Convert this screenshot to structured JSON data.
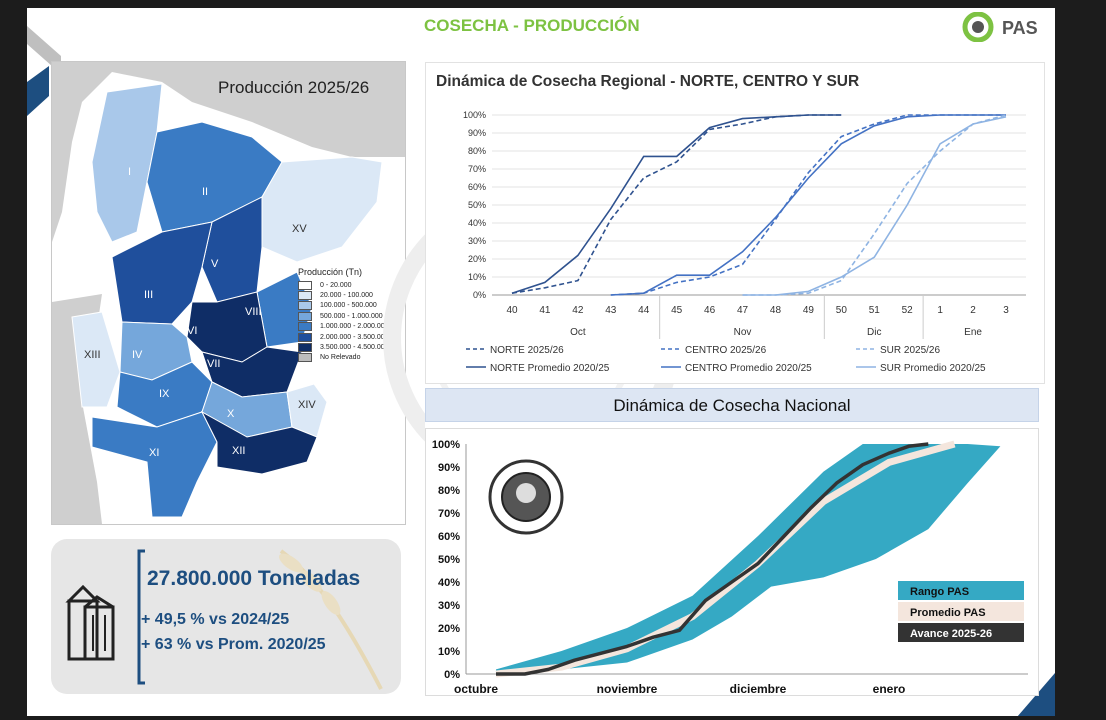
{
  "header": {
    "title": "COSECHA - PRODUCCIÓN",
    "logo_text": "PAS"
  },
  "map": {
    "title": "Producción 2025/26",
    "legend_title": "Producción (Tn)",
    "legend": [
      {
        "label": "0 - 20.000",
        "color": "#ffffff"
      },
      {
        "label": "20.000 - 100.000",
        "color": "#dbe8f6"
      },
      {
        "label": "100.000 - 500.000",
        "color": "#a9c8ea"
      },
      {
        "label": "500.000 - 1.000.000",
        "color": "#75a7db"
      },
      {
        "label": "1.000.000 - 2.000.000",
        "color": "#3a7bc4"
      },
      {
        "label": "2.000.000 - 3.500.000",
        "color": "#1f4f9c"
      },
      {
        "label": "3.500.000 - 4.500.000",
        "color": "#0f2d66"
      },
      {
        "label": "No Relevado",
        "color": "#bdbdbd"
      }
    ],
    "regions": [
      "I",
      "II",
      "III",
      "IV",
      "V",
      "VI",
      "VII",
      "VIII",
      "IX",
      "X",
      "XI",
      "XII",
      "XIII",
      "XIV",
      "XV"
    ]
  },
  "summary": {
    "total": "27.800.000 Toneladas",
    "vs_prev": "+ 49,5 % vs 2024/25",
    "vs_avg": "+ 63 % vs Prom. 2020/25"
  },
  "chart_data": [
    {
      "type": "line",
      "title": "Dinámica de Cosecha Regional - NORTE, CENTRO Y SUR",
      "x": [
        "40",
        "41",
        "42",
        "43",
        "44",
        "45",
        "46",
        "47",
        "48",
        "49",
        "50",
        "51",
        "52",
        "1",
        "2",
        "3"
      ],
      "month_labels": [
        "Oct",
        "Nov",
        "Dic",
        "Ene"
      ],
      "ylim": [
        0,
        100
      ],
      "yticks": [
        "0%",
        "10%",
        "20%",
        "30%",
        "40%",
        "50%",
        "60%",
        "70%",
        "80%",
        "90%",
        "100%"
      ],
      "series": [
        {
          "name": "NORTE 2025/26",
          "style": "dashed",
          "color": "#2f528f",
          "values": [
            1,
            4,
            8,
            42,
            65,
            74,
            92,
            95,
            99,
            100,
            100,
            null,
            null,
            null,
            null,
            null
          ]
        },
        {
          "name": "NORTE Promedio 2020/25",
          "style": "solid",
          "color": "#2f528f",
          "values": [
            1,
            7,
            22,
            48,
            77,
            77,
            93,
            98,
            99,
            100,
            100,
            null,
            null,
            null,
            null,
            null
          ]
        },
        {
          "name": "CENTRO 2025/26",
          "style": "dashed",
          "color": "#4472c4",
          "values": [
            null,
            null,
            null,
            0,
            1,
            7,
            10,
            17,
            42,
            68,
            88,
            95,
            100,
            100,
            100,
            100
          ]
        },
        {
          "name": "CENTRO Promedio 2020/25",
          "style": "solid",
          "color": "#4472c4",
          "values": [
            null,
            null,
            null,
            0,
            1,
            11,
            11,
            24,
            43,
            65,
            84,
            94,
            99,
            100,
            100,
            100
          ]
        },
        {
          "name": "SUR 2025/26",
          "style": "dashed",
          "color": "#8fb4e3",
          "values": [
            null,
            null,
            null,
            null,
            null,
            null,
            null,
            0,
            0,
            1,
            8,
            34,
            62,
            80,
            95,
            100
          ]
        },
        {
          "name": "SUR Promedio 2020/25",
          "style": "solid",
          "color": "#8fb4e3",
          "values": [
            null,
            null,
            null,
            null,
            null,
            null,
            null,
            0,
            0,
            2,
            10,
            21,
            50,
            84,
            95,
            99
          ]
        }
      ]
    },
    {
      "type": "area",
      "title": "Dinámica de Cosecha Nacional",
      "xlabels": [
        "octubre",
        "noviembre",
        "diciembre",
        "enero"
      ],
      "xlim": [
        0,
        4
      ],
      "ylim": [
        0,
        100
      ],
      "yticks": [
        "0%",
        "10%",
        "20%",
        "30%",
        "40%",
        "50%",
        "60%",
        "70%",
        "80%",
        "90%",
        "100%"
      ],
      "series": [
        {
          "name": "Rango PAS",
          "kind": "band",
          "color": "#35a9c4",
          "upper": [
            [
              0,
              2
            ],
            [
              0.5,
              10
            ],
            [
              1,
              20
            ],
            [
              1.5,
              34
            ],
            [
              2,
              60
            ],
            [
              2.5,
              88
            ],
            [
              2.8,
              100
            ],
            [
              3.6,
              100
            ]
          ],
          "lower": [
            [
              0,
              0
            ],
            [
              0.5,
              2
            ],
            [
              1,
              5
            ],
            [
              1.5,
              15
            ],
            [
              1.8,
              25
            ],
            [
              2.1,
              38
            ],
            [
              2.5,
              42
            ],
            [
              2.9,
              50
            ],
            [
              3.3,
              63
            ],
            [
              3.6,
              83
            ],
            [
              3.85,
              99
            ]
          ]
        },
        {
          "name": "Promedio PAS",
          "kind": "line",
          "color": "#f4e6dd",
          "points": [
            [
              0,
              0
            ],
            [
              0.5,
              3
            ],
            [
              1,
              11
            ],
            [
              1.5,
              25
            ],
            [
              2,
              48
            ],
            [
              2.5,
              75
            ],
            [
              3,
              92
            ],
            [
              3.5,
              100
            ]
          ]
        },
        {
          "name": "Avance 2025-26",
          "kind": "line",
          "color": "#333333",
          "points": [
            [
              0,
              0
            ],
            [
              0.22,
              0
            ],
            [
              0.4,
              2
            ],
            [
              0.6,
              6
            ],
            [
              0.8,
              9
            ],
            [
              1,
              12
            ],
            [
              1.2,
              16
            ],
            [
              1.4,
              19
            ],
            [
              1.6,
              32
            ],
            [
              1.8,
              40
            ],
            [
              2,
              48
            ],
            [
              2.2,
              60
            ],
            [
              2.4,
              72
            ],
            [
              2.6,
              83
            ],
            [
              2.8,
              91
            ],
            [
              3,
              96
            ],
            [
              3.15,
              99
            ],
            [
              3.3,
              100
            ]
          ]
        }
      ]
    }
  ]
}
